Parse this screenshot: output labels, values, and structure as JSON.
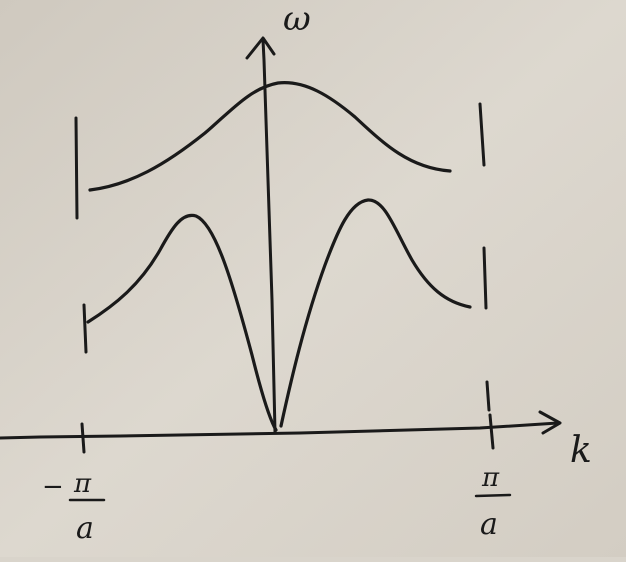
{
  "figure": {
    "axis_labels": {
      "vertical": "ω",
      "horizontal": "k"
    },
    "x_ticks": {
      "left": {
        "sign": "−",
        "numerator": "π",
        "denominator": "a"
      },
      "right": {
        "sign": "",
        "numerator": "π",
        "denominator": "a"
      }
    },
    "branches": [
      {
        "kind": "optical",
        "shape": "maximum at k = 0, decreasing toward the zone edges"
      },
      {
        "kind": "acoustic",
        "shape": "zero at k = 0, rising to peaks then decreasing toward the zone edges"
      }
    ],
    "zone_boundaries": [
      "-π/a",
      "π/a"
    ],
    "colors": {
      "paper": "#d9d4cb",
      "ink": "#1a1a1a"
    }
  }
}
